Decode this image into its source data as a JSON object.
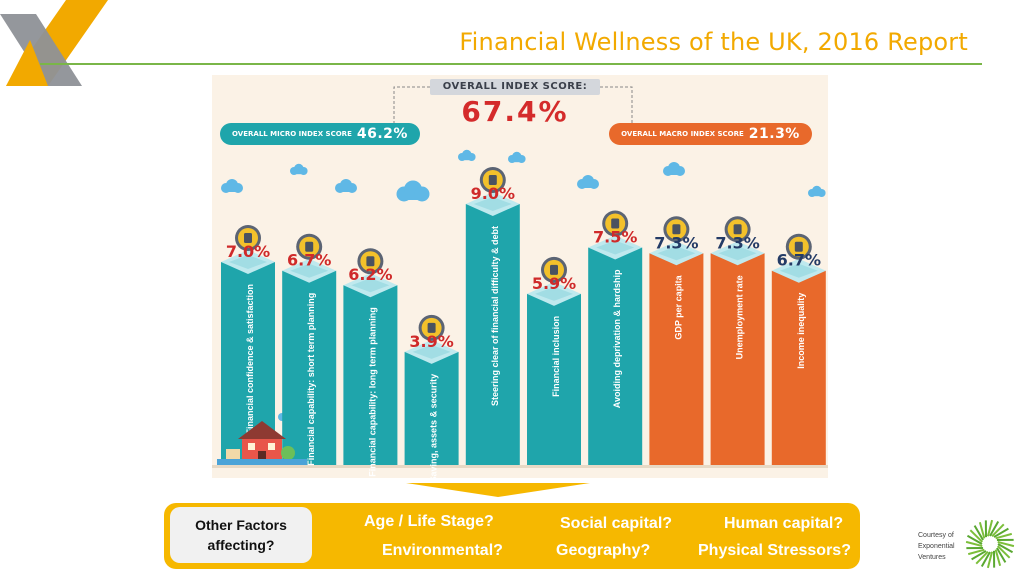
{
  "slide": {
    "title": "Financial Wellness of the UK, 2016 Report"
  },
  "infographic": {
    "overall_label": "OVERALL INDEX SCORE:",
    "overall_value": "67.4%",
    "micro": {
      "label": "OVERALL MICRO INDEX SCORE",
      "value": "46.2%"
    },
    "macro": {
      "label": "OVERALL MACRO INDEX SCORE",
      "value": "21.3%"
    }
  },
  "chart_data": {
    "type": "bar",
    "title": "OVERALL INDEX SCORE: 67.4%",
    "categories": [
      "Financial confidence & satisfaction",
      "Financial capability: short term planning",
      "Financial capability: long term planning",
      "Saving, assets & security",
      "Steering clear of financial difficulty & debt",
      "Financial inclusion",
      "Avoiding deprivation & hardship",
      "GDP per capita",
      "Unemployment rate",
      "Income inequality"
    ],
    "values": [
      7.0,
      6.7,
      6.2,
      3.9,
      9.0,
      5.9,
      7.5,
      7.3,
      7.3,
      6.7
    ],
    "value_labels": [
      "7.0%",
      "6.7%",
      "6.2%",
      "3.9%",
      "9.0%",
      "5.9%",
      "7.5%",
      "7.3%",
      "7.3%",
      "6.7%"
    ],
    "groups": [
      "micro",
      "micro",
      "micro",
      "micro",
      "micro",
      "micro",
      "micro",
      "macro",
      "macro",
      "macro"
    ],
    "group_colors": {
      "micro": "#1fa5ab",
      "macro": "#e8692b"
    },
    "icons": [
      "pound-icon",
      "calculator-icon",
      "wallet-icon",
      "shield-icon",
      "card-icon",
      "gears-icon",
      "receipt-icon",
      "globe-icon",
      "worker-icon",
      "handshake-icon"
    ],
    "ylim": [
      0,
      10
    ]
  },
  "factors": {
    "heading": "Other Factors affecting?",
    "items": [
      "Age / Life Stage?",
      "Social capital?",
      "Human capital?",
      "Environmental?",
      "Geography?",
      "Physical Stressors?"
    ]
  },
  "courtesy": {
    "text": "Courtesy of Exponential Ventures"
  }
}
